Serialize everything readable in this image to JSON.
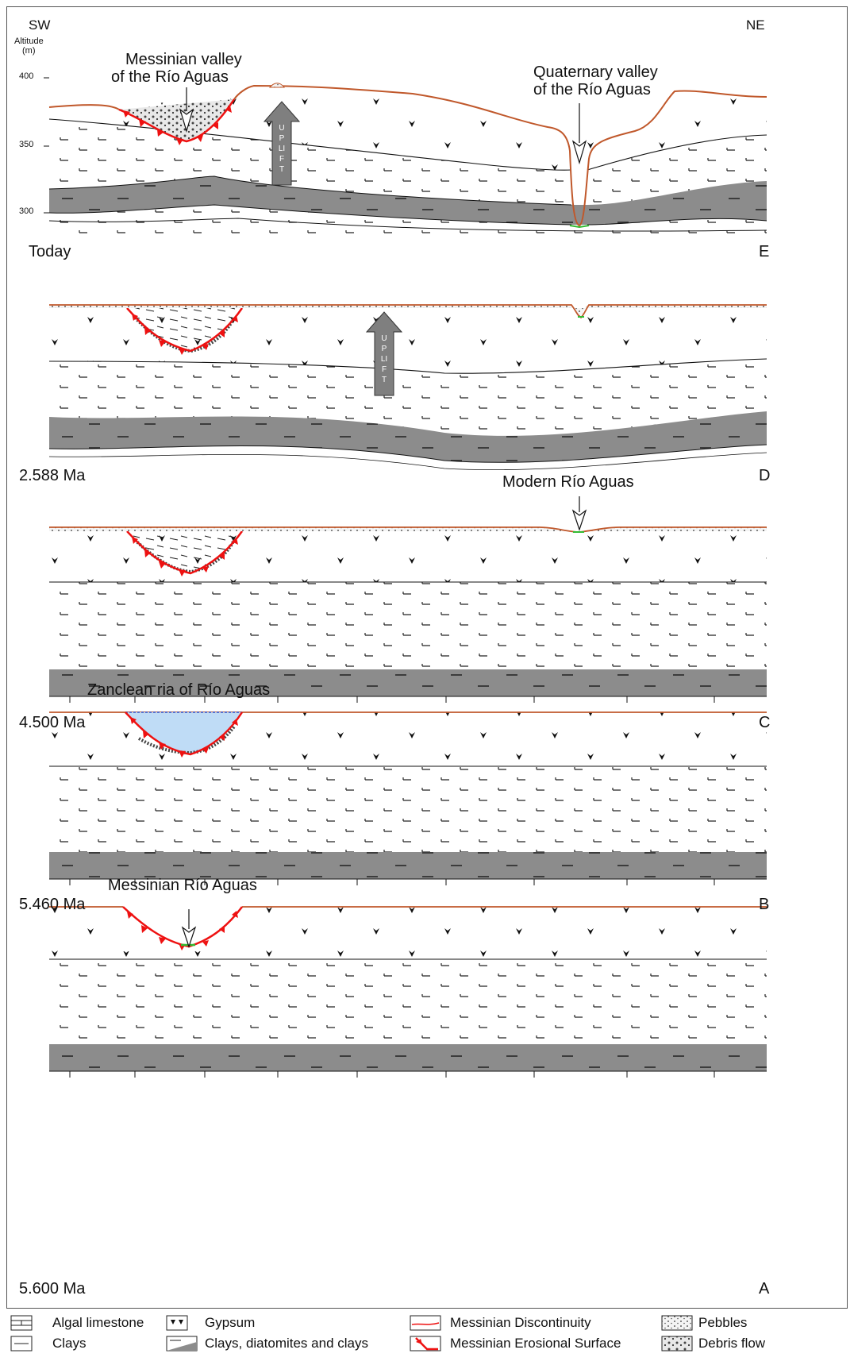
{
  "axis": {
    "title": "Altitude",
    "unit": "(m)",
    "ticks": [
      "400",
      "350",
      "300"
    ]
  },
  "orientation": {
    "left": "SW",
    "right": "NE"
  },
  "panels": [
    {
      "time": "Today",
      "letter": "E"
    },
    {
      "time": "2.588 Ma",
      "letter": "D"
    },
    {
      "time": "4.500 Ma",
      "letter": "C"
    },
    {
      "time": "5.460 Ma",
      "letter": "B"
    },
    {
      "time": "5.600 Ma",
      "letter": "A"
    }
  ],
  "annotations": {
    "messinian_valley": [
      "Messinian valley",
      "of the Río Aguas"
    ],
    "quaternary_valley": [
      "Quaternary valley",
      "of the Río Aguas"
    ],
    "uplift": "UPLIFT",
    "modern": "Modern Río Aguas",
    "zanclean": "Zanclean ria of Río Aguas",
    "messinian_rio": "Messinian Río Aguas"
  },
  "legend": [
    {
      "label": "Algal limestone",
      "icon": "algal-limestone-swatch"
    },
    {
      "label": "Gypsum",
      "icon": "gypsum-swatch"
    },
    {
      "label": "Messinian Discontinuity",
      "icon": "discontinuity-line-swatch"
    },
    {
      "label": "Pebbles",
      "icon": "pebbles-swatch"
    },
    {
      "label": "Clays",
      "icon": "clays-swatch"
    },
    {
      "label": "Clays, diatomites and clays",
      "icon": "diatomites-swatch"
    },
    {
      "label": "Messinian Erosional Surface",
      "icon": "erosional-surface-swatch"
    },
    {
      "label": "Debris flow",
      "icon": "debris-flow-swatch"
    }
  ],
  "colors": {
    "discontinuity": "#c0582b",
    "erosion": "#ee1111",
    "limestone_band": "#8c8c8c",
    "water": "#bfdcf6",
    "uplift_arrow": "#7f7f7f",
    "river_green": "#33bb33"
  }
}
